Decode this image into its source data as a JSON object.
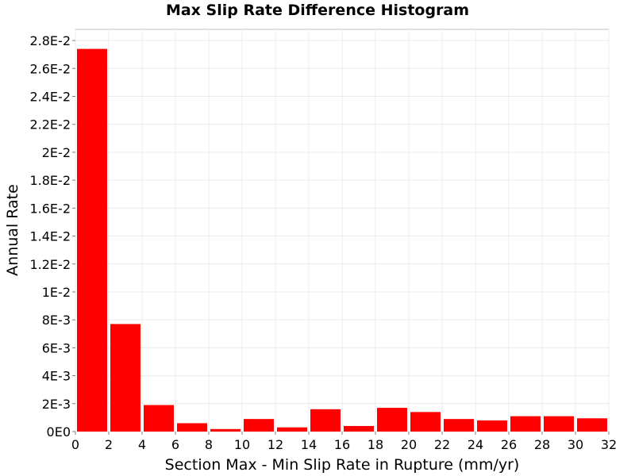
{
  "chart_data": {
    "type": "bar",
    "title": "Max Slip Rate Difference Histogram",
    "xlabel": "Section Max - Min Slip Rate in Rupture (mm/yr)",
    "ylabel": "Annual Rate",
    "xlim": [
      0,
      32
    ],
    "ylim": [
      0,
      0.0288
    ],
    "bin_width": 2,
    "x_ticks": [
      0,
      2,
      4,
      6,
      8,
      10,
      12,
      14,
      16,
      18,
      20,
      22,
      24,
      26,
      28,
      30,
      32
    ],
    "y_ticks": [
      {
        "value": 0,
        "label": "0E0"
      },
      {
        "value": 0.002,
        "label": "2E-3"
      },
      {
        "value": 0.004,
        "label": "4E-3"
      },
      {
        "value": 0.006,
        "label": "6E-3"
      },
      {
        "value": 0.008,
        "label": "8E-3"
      },
      {
        "value": 0.01,
        "label": "1E-2"
      },
      {
        "value": 0.012,
        "label": "1.2E-2"
      },
      {
        "value": 0.014,
        "label": "1.4E-2"
      },
      {
        "value": 0.016,
        "label": "1.6E-2"
      },
      {
        "value": 0.018,
        "label": "1.8E-2"
      },
      {
        "value": 0.02,
        "label": "2E-2"
      },
      {
        "value": 0.022,
        "label": "2.2E-2"
      },
      {
        "value": 0.024,
        "label": "2.4E-2"
      },
      {
        "value": 0.026,
        "label": "2.6E-2"
      },
      {
        "value": 0.028,
        "label": "2.8E-2"
      }
    ],
    "bins": [
      {
        "x": 1,
        "value": 0.0274
      },
      {
        "x": 3,
        "value": 0.0077
      },
      {
        "x": 5,
        "value": 0.0019
      },
      {
        "x": 7,
        "value": 0.0006
      },
      {
        "x": 9,
        "value": 0.00018
      },
      {
        "x": 11,
        "value": 0.0009
      },
      {
        "x": 13,
        "value": 0.0003
      },
      {
        "x": 15,
        "value": 0.0016
      },
      {
        "x": 17,
        "value": 0.0004
      },
      {
        "x": 19,
        "value": 0.0017
      },
      {
        "x": 21,
        "value": 0.0014
      },
      {
        "x": 23,
        "value": 0.0009
      },
      {
        "x": 25,
        "value": 0.0008
      },
      {
        "x": 27,
        "value": 0.0011
      },
      {
        "x": 29,
        "value": 0.0011
      },
      {
        "x": 31,
        "value": 0.00095
      }
    ],
    "bar_color": "#ff0000",
    "grid": true,
    "legend": "none"
  }
}
